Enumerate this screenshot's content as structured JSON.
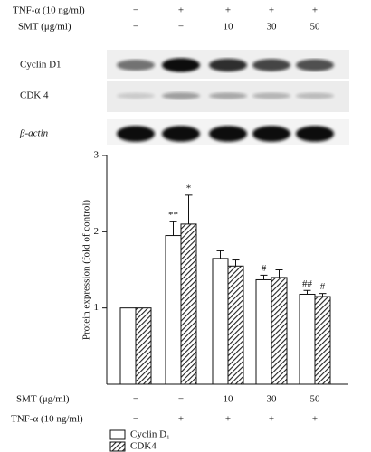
{
  "blot": {
    "rows": [
      {
        "label": "TNF-α (10 ng/ml)",
        "values": [
          "−",
          "+",
          "+",
          "+",
          "+"
        ]
      },
      {
        "label": "SMT (μg/ml)",
        "values": [
          "−",
          "−",
          "10",
          "30",
          "50"
        ]
      }
    ],
    "bands": [
      "Cyclin D1",
      "CDK 4",
      "β-actin"
    ]
  },
  "chart_data": {
    "type": "bar",
    "ylabel": "Protein expression (fold of control)",
    "categories": [
      null,
      null,
      null,
      null,
      null
    ],
    "conditions": [
      {
        "label": "SMT (μg/ml)",
        "values": [
          "−",
          "−",
          "10",
          "30",
          "50"
        ]
      },
      {
        "label": "TNF-α (10 ng/ml)",
        "values": [
          "−",
          "+",
          "+",
          "+",
          "+"
        ]
      }
    ],
    "series": [
      {
        "name": "Cyclin D₁",
        "color": "#ffffff",
        "values": [
          1,
          1.95,
          1.65,
          1.37,
          1.18
        ],
        "errors": [
          0,
          0.18,
          0.1,
          0.06,
          0.05
        ],
        "significance": [
          null,
          "**",
          null,
          "#",
          "##"
        ]
      },
      {
        "name": "CDK4",
        "color": "hatch",
        "values": [
          1,
          2.1,
          1.55,
          1.4,
          1.15
        ],
        "errors": [
          0,
          0.38,
          0.08,
          0.1,
          0.04
        ],
        "significance": [
          null,
          "*",
          null,
          null,
          "#"
        ]
      }
    ],
    "ylim": [
      0,
      3
    ],
    "yticks": [
      1,
      2,
      3
    ],
    "legend": "bottom-left"
  }
}
